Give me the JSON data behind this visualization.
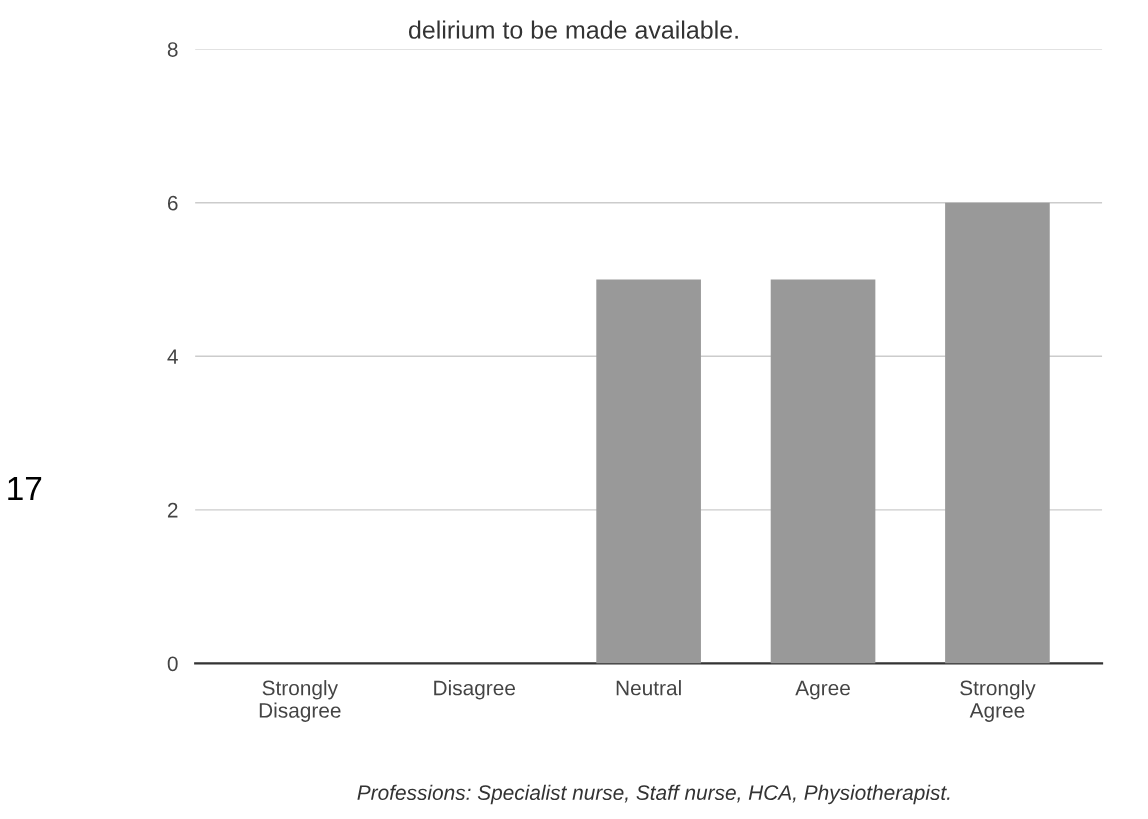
{
  "chart_data": {
    "type": "bar",
    "title": "delirium to be made available.",
    "categories": [
      "Strongly\nDisagree",
      "Disagree",
      "Neutral",
      "Agree",
      "Strongly\nAgree"
    ],
    "values": [
      0,
      0,
      5,
      5,
      6
    ],
    "color": "#999999",
    "ylim": [
      0,
      8
    ],
    "yticks": [
      0,
      2,
      4,
      6,
      8
    ],
    "grid": "y",
    "annotations": [
      "17",
      "Professions: Specialist nurse, Staff nurse, HCA, Physiotherapist."
    ]
  }
}
